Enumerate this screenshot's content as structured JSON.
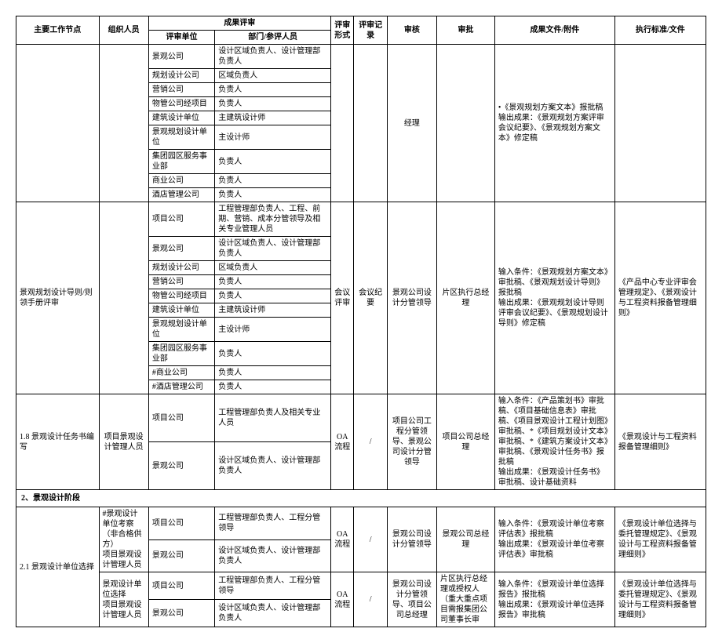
{
  "headers": {
    "node": "主要工作节点",
    "org": "组织人员",
    "result_review": "成果评审",
    "review_unit": "评审单位",
    "dept_people": "部门/参评人员",
    "review_form": "评审形式",
    "review_record": "评审记录",
    "audit": "审核",
    "approve": "审批",
    "output": "成果文件/附件",
    "standard": "执行标准/文件"
  },
  "block1": {
    "units": [
      "景观公司",
      "规划设计公司",
      "营销公司",
      "物管公司经项目",
      "建筑设计单位",
      "景观规划设计单位",
      "集团园区服务事业部",
      "商业公司",
      "酒店管理公司"
    ],
    "depts": [
      "设计区域负责人、设计管理部负责人",
      "区域负责人",
      "负责人",
      "负责人",
      "主建筑设计师",
      "主设计师",
      "负责人",
      "负责人",
      "负责人"
    ],
    "audit": "经理",
    "output": "•《景观规划方案文本》报批稿\n输出成果：《景观规划方案评审会议纪要》、《景观规划方案文本》修定稿"
  },
  "block2": {
    "node": "景观规划设计导则/则领手册评审",
    "units": [
      "项目公司",
      "景观公司",
      "规划设计公司",
      "营销公司",
      "物管公司经项目",
      "建筑设计单位",
      "景观规划设计单位",
      "集团园区服务事业部",
      "#商业公司",
      "#酒店管理公司"
    ],
    "depts": [
      "工程管理部负责人、工程、前期、营销、成本分管领导及相关专业管理人员",
      "设计区域负责人、设计管理部负责人",
      "区域负责人",
      "负责人",
      "负责人",
      "主建筑设计师",
      "主设计师",
      "负责人",
      "负责人",
      "负责人"
    ],
    "form": "会议评审",
    "record": "会议纪要",
    "audit": "景观公司设计分管领导",
    "approve": "片区执行总经理",
    "output": "输入条件：《景观规划方案文本》审批稿、《景观规划设计导则》报批稿\n输出成果：《景观规划设计导则评审会议纪要》、《景观规划设计导则》修定稿",
    "standard": "《产品中心专业评审会管理规定》、《景观设计与工程资料报备管理细则》"
  },
  "row18": {
    "node": "1.8 景观设计任务书编写",
    "org": "项目景观设计管理人员",
    "unit1": "项目公司",
    "dept1": "工程管理部负责人及相关专业人员",
    "unit2": "景观公司",
    "dept2": "设计区域负责人、设计管理部负责人",
    "form": "OA流程",
    "record": "/",
    "audit": "项目公司工程分管领导、景观公司设计分管领导",
    "approve": "项目公司总经理",
    "output": "输入条件：《产品策划书》审批稿、《项目基础信息表》审批稿、《项目景观设计工程计划图》审批稿、*《项目规划设计文本》审批稿、*《建筑方案设计文本》审批稿、《景观设计任务书》报批稿\n输出成果：《景观设计任务书》审批稿、设计基础资料",
    "standard": "《景观设计与工程资料报备管理细则》"
  },
  "section2": "2、景观设计阶段",
  "row21a": {
    "node": "2.1 景观设计单位选择",
    "sub": "#景观设计单位考察（非合格供方）",
    "org": "项目景观设计管理人员",
    "unit1": "项目公司",
    "dept1": "工程管理部负责人、工程分管领导",
    "unit2": "景观公司",
    "dept2": "设计区域负责人、设计管理部负责人",
    "form": "OA流程",
    "record": "/",
    "audit": "景观公司设计分管领导",
    "approve": "景观公司总经理",
    "output": "输入条件：《景观设计单位考察评估表》报批稿\n输出成果：《景观设计单位考察评估表》审批稿",
    "standard": "《景观设计单位选择与委托管理规定》、《景观设计与工程资料报备管理细则》"
  },
  "row21b": {
    "sub": "景观设计单位选择",
    "org": "项目景观设计管理人员",
    "unit1": "项目公司",
    "dept1": "工程管理部负责人、工程分管领导",
    "unit2": "景观公司",
    "dept2": "设计区域负责人、设计管理部负责人",
    "form": "OA流程",
    "record": "/",
    "audit": "景观公司设计分管领导、项目公司总经理",
    "approve": "片区执行总经理或授权人（重大重点项目需报集团公司董事长审",
    "output": "输入条件：《景观设计单位选择报告》报批稿\n输出成果：《景观设计单位选择报告》审批稿",
    "standard": "《景观设计单位选择与委托管理规定》、《景观设计与工程资料报备管理细则》"
  }
}
